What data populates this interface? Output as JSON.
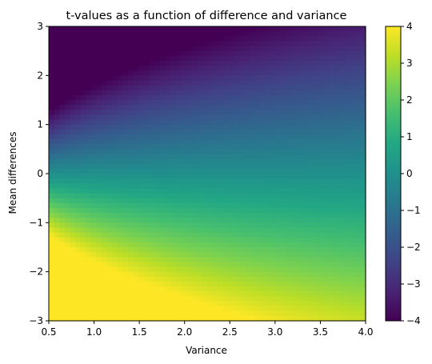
{
  "chart_data": {
    "type": "heatmap",
    "title": "t-values as a function of difference and variance",
    "xlabel": "Variance",
    "ylabel": "Mean differences",
    "xlim": [
      0.5,
      4.0
    ],
    "ylim": [
      -3,
      3
    ],
    "x_ticks": [
      "0.5",
      "1.0",
      "1.5",
      "2.0",
      "2.5",
      "3.0",
      "3.5",
      "4.0"
    ],
    "y_ticks": [
      "−3",
      "−2",
      "−1",
      "0",
      "1",
      "2",
      "3"
    ],
    "x_tick_values": [
      0.5,
      1.0,
      1.5,
      2.0,
      2.5,
      3.0,
      3.5,
      4.0
    ],
    "y_tick_values": [
      -3,
      -2,
      -1,
      0,
      1,
      2,
      3
    ],
    "colorbar": {
      "colormap": "viridis",
      "vmin": -4,
      "vmax": 4,
      "ticks": [
        "−4",
        "−3",
        "−2",
        "−1",
        "0",
        "1",
        "2",
        "3",
        "4"
      ],
      "tick_values": [
        -4,
        -3,
        -2,
        -1,
        0,
        1,
        2,
        3,
        4
      ]
    },
    "grid": false,
    "function": "t = -mean_difference / sqrt(variance / 5), clipped to [-4, 4]",
    "grid_resolution": {
      "x_cells": 60,
      "y_cells": 60
    },
    "values_sample": {
      "x": [
        0.5,
        1.0,
        2.0,
        3.0,
        4.0
      ],
      "y": [
        -3,
        -2,
        -1,
        0,
        1,
        2,
        3
      ],
      "t": [
        [
          4.0,
          4.0,
          4.0,
          3.87,
          3.35
        ],
        [
          4.0,
          4.0,
          3.16,
          2.58,
          2.24
        ],
        [
          3.16,
          2.24,
          1.58,
          1.29,
          1.12
        ],
        [
          0.0,
          0.0,
          0.0,
          0.0,
          0.0
        ],
        [
          -3.16,
          -2.24,
          -1.58,
          -1.29,
          -1.12
        ],
        [
          -4.0,
          -4.0,
          -3.16,
          -2.58,
          -2.24
        ],
        [
          -4.0,
          -4.0,
          -4.0,
          -3.87,
          -3.35
        ]
      ]
    }
  }
}
